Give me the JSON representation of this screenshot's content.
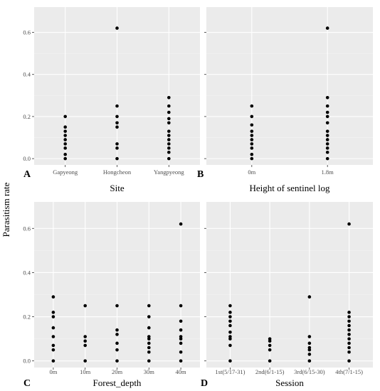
{
  "figure": {
    "ylabel": "Parasitism rate",
    "colors": {
      "panel_bg": "#ebebeb",
      "grid_major": "#ffffff",
      "point": "#000000",
      "tick_text": "#4d4d4d"
    }
  },
  "chart_data": [
    {
      "type": "scatter",
      "panel_letter": "A",
      "xlabel": "Site",
      "categories": [
        "Gapyeong",
        "Hongcheon",
        "Yangpyeong"
      ],
      "yticks": [
        "0.0",
        "0.2",
        "0.4",
        "0.6"
      ],
      "ylim": [
        -0.03,
        0.72
      ],
      "grid": true,
      "points": [
        {
          "x": "Gapyeong",
          "y": 0.2
        },
        {
          "x": "Gapyeong",
          "y": 0.15
        },
        {
          "x": "Gapyeong",
          "y": 0.13
        },
        {
          "x": "Gapyeong",
          "y": 0.11
        },
        {
          "x": "Gapyeong",
          "y": 0.09
        },
        {
          "x": "Gapyeong",
          "y": 0.07
        },
        {
          "x": "Gapyeong",
          "y": 0.05
        },
        {
          "x": "Gapyeong",
          "y": 0.02
        },
        {
          "x": "Gapyeong",
          "y": 0.0
        },
        {
          "x": "Hongcheon",
          "y": 0.62
        },
        {
          "x": "Hongcheon",
          "y": 0.25
        },
        {
          "x": "Hongcheon",
          "y": 0.2
        },
        {
          "x": "Hongcheon",
          "y": 0.17
        },
        {
          "x": "Hongcheon",
          "y": 0.15
        },
        {
          "x": "Hongcheon",
          "y": 0.07
        },
        {
          "x": "Hongcheon",
          "y": 0.05
        },
        {
          "x": "Hongcheon",
          "y": 0.0
        },
        {
          "x": "Yangpyeong",
          "y": 0.29
        },
        {
          "x": "Yangpyeong",
          "y": 0.25
        },
        {
          "x": "Yangpyeong",
          "y": 0.22
        },
        {
          "x": "Yangpyeong",
          "y": 0.19
        },
        {
          "x": "Yangpyeong",
          "y": 0.17
        },
        {
          "x": "Yangpyeong",
          "y": 0.13
        },
        {
          "x": "Yangpyeong",
          "y": 0.11
        },
        {
          "x": "Yangpyeong",
          "y": 0.09
        },
        {
          "x": "Yangpyeong",
          "y": 0.07
        },
        {
          "x": "Yangpyeong",
          "y": 0.05
        },
        {
          "x": "Yangpyeong",
          "y": 0.03
        },
        {
          "x": "Yangpyeong",
          "y": 0.0
        }
      ]
    },
    {
      "type": "scatter",
      "panel_letter": "B",
      "xlabel": "Height of sentinel log",
      "categories": [
        "0m",
        "1.8m"
      ],
      "yticks": [
        "0.0",
        "0.2",
        "0.4",
        "0.6"
      ],
      "ylim": [
        -0.03,
        0.72
      ],
      "grid": true,
      "points": [
        {
          "x": "0m",
          "y": 0.25
        },
        {
          "x": "0m",
          "y": 0.2
        },
        {
          "x": "0m",
          "y": 0.16
        },
        {
          "x": "0m",
          "y": 0.13
        },
        {
          "x": "0m",
          "y": 0.11
        },
        {
          "x": "0m",
          "y": 0.09
        },
        {
          "x": "0m",
          "y": 0.07
        },
        {
          "x": "0m",
          "y": 0.05
        },
        {
          "x": "0m",
          "y": 0.02
        },
        {
          "x": "0m",
          "y": 0.0
        },
        {
          "x": "1.8m",
          "y": 0.62
        },
        {
          "x": "1.8m",
          "y": 0.29
        },
        {
          "x": "1.8m",
          "y": 0.25
        },
        {
          "x": "1.8m",
          "y": 0.22
        },
        {
          "x": "1.8m",
          "y": 0.2
        },
        {
          "x": "1.8m",
          "y": 0.17
        },
        {
          "x": "1.8m",
          "y": 0.13
        },
        {
          "x": "1.8m",
          "y": 0.11
        },
        {
          "x": "1.8m",
          "y": 0.09
        },
        {
          "x": "1.8m",
          "y": 0.07
        },
        {
          "x": "1.8m",
          "y": 0.05
        },
        {
          "x": "1.8m",
          "y": 0.03
        },
        {
          "x": "1.8m",
          "y": 0.0
        }
      ]
    },
    {
      "type": "scatter",
      "panel_letter": "C",
      "xlabel": "Forest_depth",
      "categories": [
        "0m",
        "10m",
        "20m",
        "30m",
        "40m"
      ],
      "yticks": [
        "0.0",
        "0.2",
        "0.4",
        "0.6"
      ],
      "ylim": [
        -0.03,
        0.72
      ],
      "grid": true,
      "points": [
        {
          "x": "0m",
          "y": 0.29
        },
        {
          "x": "0m",
          "y": 0.22
        },
        {
          "x": "0m",
          "y": 0.2
        },
        {
          "x": "0m",
          "y": 0.15
        },
        {
          "x": "0m",
          "y": 0.11
        },
        {
          "x": "0m",
          "y": 0.07
        },
        {
          "x": "0m",
          "y": 0.05
        },
        {
          "x": "0m",
          "y": 0.0
        },
        {
          "x": "10m",
          "y": 0.25
        },
        {
          "x": "10m",
          "y": 0.11
        },
        {
          "x": "10m",
          "y": 0.09
        },
        {
          "x": "10m",
          "y": 0.07
        },
        {
          "x": "10m",
          "y": 0.0
        },
        {
          "x": "20m",
          "y": 0.25
        },
        {
          "x": "20m",
          "y": 0.14
        },
        {
          "x": "20m",
          "y": 0.12
        },
        {
          "x": "20m",
          "y": 0.08
        },
        {
          "x": "20m",
          "y": 0.05
        },
        {
          "x": "20m",
          "y": 0.0
        },
        {
          "x": "30m",
          "y": 0.25
        },
        {
          "x": "30m",
          "y": 0.2
        },
        {
          "x": "30m",
          "y": 0.15
        },
        {
          "x": "30m",
          "y": 0.11
        },
        {
          "x": "30m",
          "y": 0.1
        },
        {
          "x": "30m",
          "y": 0.08
        },
        {
          "x": "30m",
          "y": 0.06
        },
        {
          "x": "30m",
          "y": 0.04
        },
        {
          "x": "30m",
          "y": 0.0
        },
        {
          "x": "40m",
          "y": 0.62
        },
        {
          "x": "40m",
          "y": 0.25
        },
        {
          "x": "40m",
          "y": 0.18
        },
        {
          "x": "40m",
          "y": 0.14
        },
        {
          "x": "40m",
          "y": 0.11
        },
        {
          "x": "40m",
          "y": 0.1
        },
        {
          "x": "40m",
          "y": 0.08
        },
        {
          "x": "40m",
          "y": 0.04
        },
        {
          "x": "40m",
          "y": 0.0
        }
      ]
    },
    {
      "type": "scatter",
      "panel_letter": "D",
      "xlabel": "Session",
      "categories": [
        "1st(5/17-31)",
        "2nd(6/1-15)",
        "3rd(6/15-30)",
        "4th(7/1-15)"
      ],
      "yticks": [
        "0.0",
        "0.2",
        "0.4",
        "0.6"
      ],
      "ylim": [
        -0.03,
        0.72
      ],
      "grid": true,
      "points": [
        {
          "x": "1st(5/17-31)",
          "y": 0.25
        },
        {
          "x": "1st(5/17-31)",
          "y": 0.22
        },
        {
          "x": "1st(5/17-31)",
          "y": 0.2
        },
        {
          "x": "1st(5/17-31)",
          "y": 0.18
        },
        {
          "x": "1st(5/17-31)",
          "y": 0.16
        },
        {
          "x": "1st(5/17-31)",
          "y": 0.13
        },
        {
          "x": "1st(5/17-31)",
          "y": 0.11
        },
        {
          "x": "1st(5/17-31)",
          "y": 0.1
        },
        {
          "x": "1st(5/17-31)",
          "y": 0.07
        },
        {
          "x": "1st(5/17-31)",
          "y": 0.0
        },
        {
          "x": "2nd(6/1-15)",
          "y": 0.1
        },
        {
          "x": "2nd(6/1-15)",
          "y": 0.09
        },
        {
          "x": "2nd(6/1-15)",
          "y": 0.07
        },
        {
          "x": "2nd(6/1-15)",
          "y": 0.05
        },
        {
          "x": "2nd(6/1-15)",
          "y": 0.0
        },
        {
          "x": "3rd(6/15-30)",
          "y": 0.29
        },
        {
          "x": "3rd(6/15-30)",
          "y": 0.11
        },
        {
          "x": "3rd(6/15-30)",
          "y": 0.08
        },
        {
          "x": "3rd(6/15-30)",
          "y": 0.06
        },
        {
          "x": "3rd(6/15-30)",
          "y": 0.05
        },
        {
          "x": "3rd(6/15-30)",
          "y": 0.03
        },
        {
          "x": "3rd(6/15-30)",
          "y": 0.0
        },
        {
          "x": "4th(7/1-15)",
          "y": 0.62
        },
        {
          "x": "4th(7/1-15)",
          "y": 0.22
        },
        {
          "x": "4th(7/1-15)",
          "y": 0.2
        },
        {
          "x": "4th(7/1-15)",
          "y": 0.18
        },
        {
          "x": "4th(7/1-15)",
          "y": 0.16
        },
        {
          "x": "4th(7/1-15)",
          "y": 0.14
        },
        {
          "x": "4th(7/1-15)",
          "y": 0.12
        },
        {
          "x": "4th(7/1-15)",
          "y": 0.1
        },
        {
          "x": "4th(7/1-15)",
          "y": 0.08
        },
        {
          "x": "4th(7/1-15)",
          "y": 0.06
        },
        {
          "x": "4th(7/1-15)",
          "y": 0.04
        },
        {
          "x": "4th(7/1-15)",
          "y": 0.0
        }
      ]
    }
  ]
}
